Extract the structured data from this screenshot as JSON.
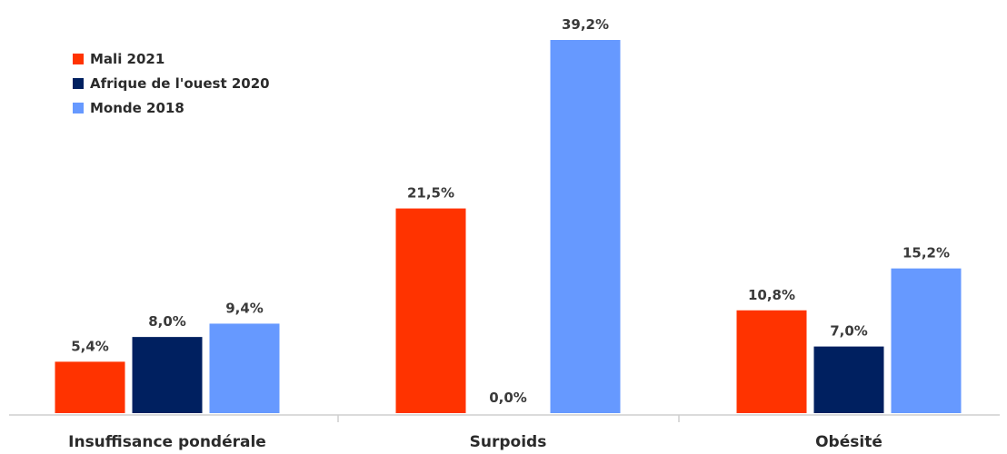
{
  "chart_data": {
    "type": "bar",
    "title": "",
    "xlabel": "",
    "ylabel": "",
    "categories": [
      "Insuffisance pondérale",
      "Surpoids",
      "Obésité"
    ],
    "series": [
      {
        "name": "Mali 2021",
        "color": "#ff3300",
        "values": [
          5.4,
          21.5,
          10.8
        ],
        "labels": [
          "5,4%",
          "21,5%",
          "10,8%"
        ]
      },
      {
        "name": "Afrique de l'ouest 2020",
        "color": "#002060",
        "values": [
          8.0,
          0.0,
          7.0
        ],
        "labels": [
          "8,0%",
          "0,0%",
          "7,0%"
        ]
      },
      {
        "name": "Monde 2018",
        "color": "#6699ff",
        "values": [
          9.4,
          39.2,
          15.2
        ],
        "labels": [
          "9,4%",
          "39,2%",
          "15,2%"
        ]
      }
    ],
    "ylim": [
      0,
      39.2
    ],
    "grid": false,
    "legend": "top-left"
  }
}
